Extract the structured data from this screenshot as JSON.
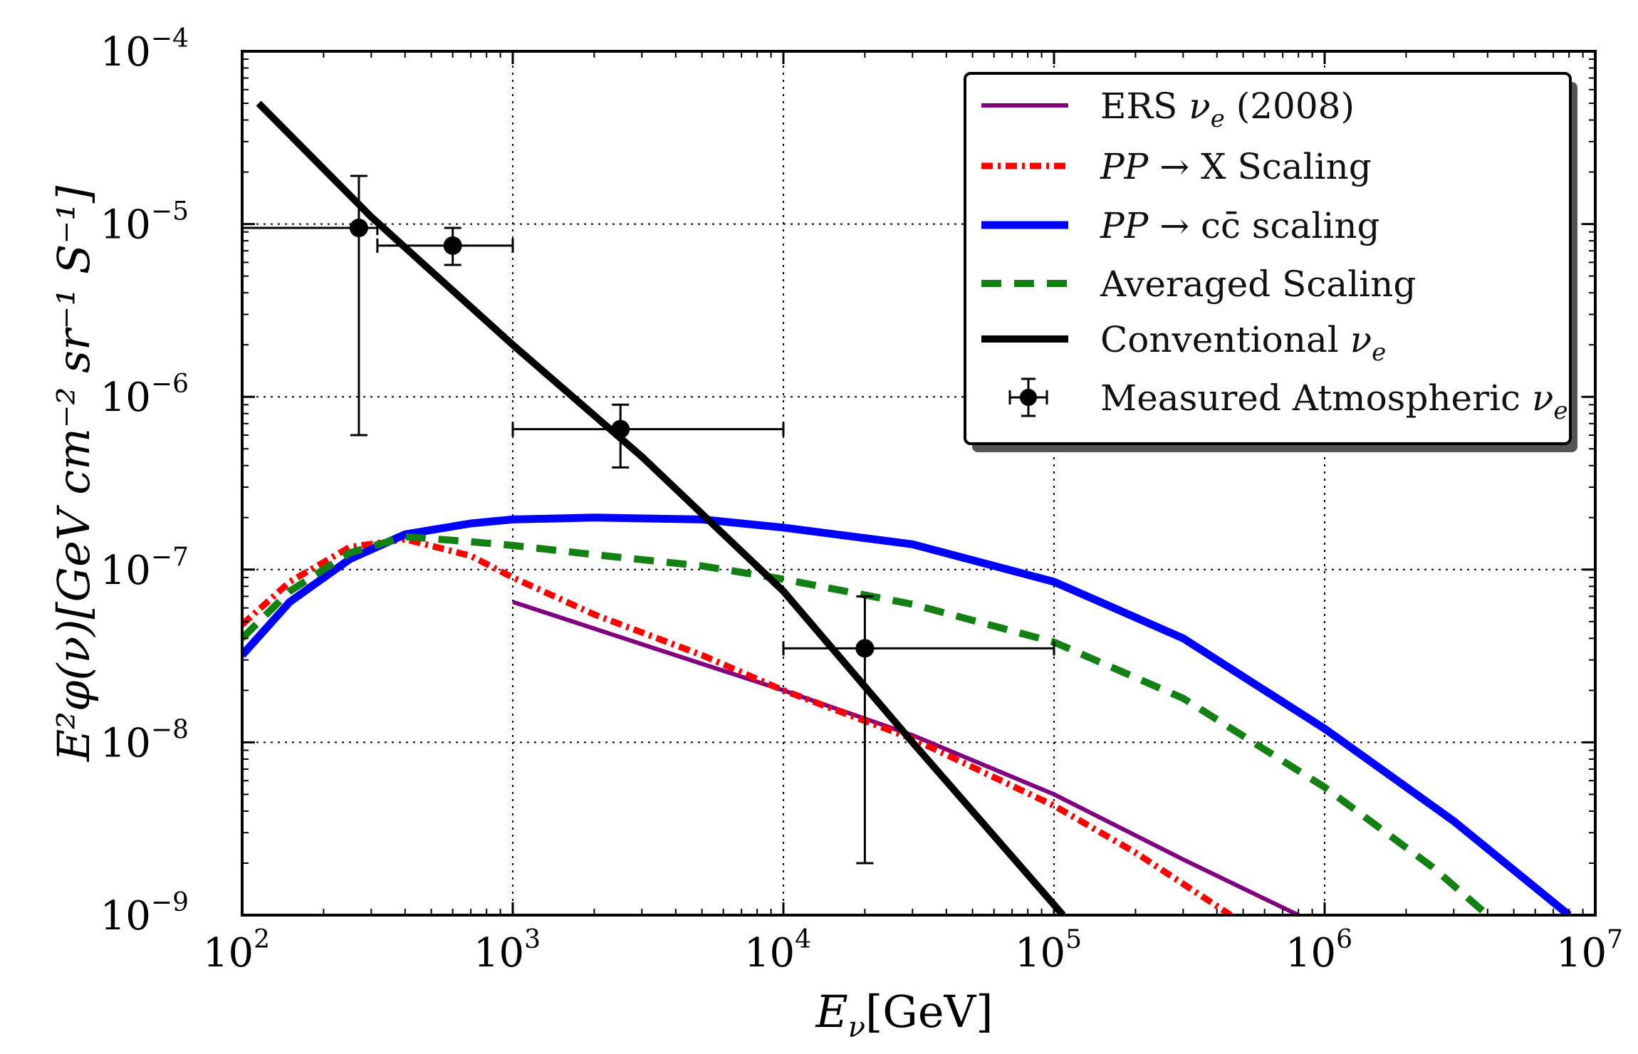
{
  "chart_data": {
    "type": "line",
    "xscale": "log",
    "yscale": "log",
    "xlim": [
      100,
      10000000
    ],
    "ylim": [
      1e-09,
      0.0001
    ],
    "grid": true,
    "xlabel": "E_ν[GeV]",
    "ylabel": "E²φ(ν)[GeV cm⁻² sr⁻¹ S⁻¹]",
    "x_ticks": [
      {
        "base": "10",
        "exp": "2",
        "value": 100
      },
      {
        "base": "10",
        "exp": "3",
        "value": 1000
      },
      {
        "base": "10",
        "exp": "4",
        "value": 10000
      },
      {
        "base": "10",
        "exp": "5",
        "value": 100000
      },
      {
        "base": "10",
        "exp": "6",
        "value": 1000000
      },
      {
        "base": "10",
        "exp": "7",
        "value": 10000000
      }
    ],
    "y_ticks": [
      {
        "base": "10",
        "exp": "−9",
        "value": 1e-09
      },
      {
        "base": "10",
        "exp": "−8",
        "value": 1e-08
      },
      {
        "base": "10",
        "exp": "−7",
        "value": 1e-07
      },
      {
        "base": "10",
        "exp": "−6",
        "value": 1e-06
      },
      {
        "base": "10",
        "exp": "−5",
        "value": 1e-05
      },
      {
        "base": "10",
        "exp": "−4",
        "value": 0.0001
      }
    ],
    "legend_position": "top-right",
    "series": [
      {
        "name": "ERS ν_e (2008)",
        "color": "#800080",
        "style": "solid",
        "x": [
          1000,
          3000,
          10000,
          30000,
          100000,
          300000,
          800000
        ],
        "y": [
          6.5e-08,
          3.7e-08,
          2e-08,
          1.1e-08,
          5e-09,
          2.1e-09,
          1e-09
        ]
      },
      {
        "name": "PP → X Scaling",
        "color": "#ff0000",
        "style": "dashdot",
        "x": [
          100,
          150,
          250,
          400,
          700,
          1000,
          2000,
          5000,
          10000,
          30000,
          100000,
          200000,
          450000
        ],
        "y": [
          4.8e-08,
          8.5e-08,
          1.35e-07,
          1.5e-07,
          1.2e-07,
          9e-08,
          5.5e-08,
          3.2e-08,
          2e-08,
          1.05e-08,
          4.3e-09,
          2.3e-09,
          1e-09
        ]
      },
      {
        "name": "PP → cc̄ scaling",
        "color": "#0000ff",
        "style": "solid",
        "x": [
          100,
          150,
          250,
          400,
          700,
          1000,
          2000,
          5000,
          10000,
          30000,
          100000,
          300000,
          1000000,
          3000000,
          8000000
        ],
        "y": [
          3.2e-08,
          6.5e-08,
          1.15e-07,
          1.6e-07,
          1.85e-07,
          1.95e-07,
          2e-07,
          1.95e-07,
          1.75e-07,
          1.4e-07,
          8.5e-08,
          4e-08,
          1.2e-08,
          3.5e-09,
          1e-09
        ]
      },
      {
        "name": "Averaged Scaling",
        "color": "#138013",
        "style": "dashed",
        "x": [
          100,
          150,
          250,
          400,
          700,
          1000,
          2000,
          5000,
          10000,
          30000,
          100000,
          300000,
          1000000,
          2500000,
          4000000
        ],
        "y": [
          4e-08,
          7.5e-08,
          1.25e-07,
          1.55e-07,
          1.45e-07,
          1.38e-07,
          1.22e-07,
          1.05e-07,
          8.8e-08,
          6.3e-08,
          3.8e-08,
          1.8e-08,
          5.5e-09,
          1.9e-09,
          1e-09
        ]
      },
      {
        "name": "Conventional ν_e",
        "color": "#000000",
        "style": "solid",
        "x": [
          115,
          300,
          1000,
          3000,
          10000,
          30000,
          108000
        ],
        "y": [
          5e-05,
          1.1e-05,
          2e-06,
          4.5e-07,
          7.5e-08,
          1e-08,
          1e-09
        ]
      }
    ],
    "measured": {
      "name": "Measured Atmospheric ν_e",
      "color": "#000000",
      "points": [
        {
          "x": 270,
          "y": 9.5e-06,
          "xlo": 100,
          "xhi": 316,
          "ylo": 6e-07,
          "yhi": 1.9e-05
        },
        {
          "x": 600,
          "y": 7.5e-06,
          "xlo": 316,
          "xhi": 1000,
          "ylo": 5.8e-06,
          "yhi": 9.5e-06
        },
        {
          "x": 2500,
          "y": 6.5e-07,
          "xlo": 1000,
          "xhi": 10000,
          "ylo": 3.9e-07,
          "yhi": 9e-07
        },
        {
          "x": 20000,
          "y": 3.5e-08,
          "xlo": 10000,
          "xhi": 100000,
          "ylo": 2e-09,
          "yhi": 7e-08
        }
      ]
    }
  },
  "legend": {
    "items": [
      {
        "pre": "ERS ",
        "math": "ν",
        "sub": "e",
        "post": " (2008)"
      },
      {
        "pre": "",
        "math": "PP",
        "sub": "",
        "post": " → X Scaling"
      },
      {
        "pre": "",
        "math": "PP",
        "sub": "",
        "post": " → cc̄ scaling"
      },
      {
        "pre": "Averaged Scaling",
        "math": "",
        "sub": "",
        "post": ""
      },
      {
        "pre": "Conventional ",
        "math": "ν",
        "sub": "e",
        "post": ""
      },
      {
        "pre": "Measured Atmospheric ",
        "math": "ν",
        "sub": "e",
        "post": ""
      }
    ]
  },
  "labels": {
    "x_main": "E",
    "x_sub": "ν",
    "x_unit": "[GeV]",
    "y_text": "E²φ(ν)[GeV cm⁻² sr⁻¹ S⁻¹]"
  }
}
